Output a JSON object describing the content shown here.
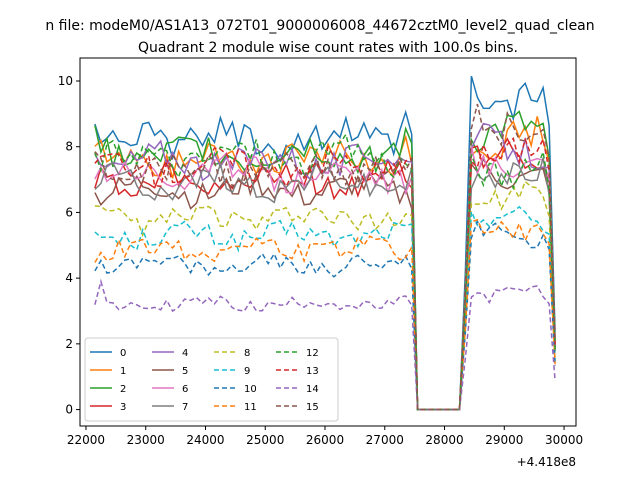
{
  "chart_data": {
    "type": "line",
    "suptitle": "n file: modeM0/AS1A13_072T01_9000006008_44672cztM0_level2_quad_clean",
    "title": "Quadrant 2 module wise count rates with 100.0s bins.",
    "xlabel": "",
    "ylabel": "",
    "x_offset_label": "+4.418e8",
    "xlim": [
      21900,
      30200
    ],
    "ylim": [
      -0.5,
      10.7
    ],
    "xticks": [
      22000,
      23000,
      24000,
      25000,
      26000,
      27000,
      28000,
      29000,
      30000
    ],
    "yticks": [
      0,
      2,
      4,
      6,
      8,
      10
    ],
    "grid": false,
    "legend_position": "lower-left",
    "legend_columns": 4,
    "x_start": 22150,
    "x_step": 100,
    "num_points": 78,
    "gap_start": 27550,
    "gap_end": 28250,
    "series": [
      {
        "name": "0",
        "color": "#1f77b4",
        "dash": "solid",
        "level": 8.25,
        "post": 9.4,
        "spikes": {
          "28450": 10.15,
          "28550": 9.5,
          "27350": 9.05
        }
      },
      {
        "name": "1",
        "color": "#ff7f0e",
        "dash": "solid",
        "level": 7.65,
        "post": 8.2,
        "spikes": {
          "27350": 8.3
        }
      },
      {
        "name": "2",
        "color": "#2ca02c",
        "dash": "solid",
        "level": 7.75,
        "post": 8.35,
        "spikes": {
          "22150": 8.65,
          "27350": 8.55
        }
      },
      {
        "name": "3",
        "color": "#d62728",
        "dash": "solid",
        "level": 7.0,
        "post": 7.6,
        "spikes": {}
      },
      {
        "name": "4",
        "color": "#9467bd",
        "dash": "solid",
        "level": 7.6,
        "post": 8.0,
        "spikes": {}
      },
      {
        "name": "5",
        "color": "#8c564b",
        "dash": "solid",
        "level": 6.7,
        "post": 7.2,
        "spikes": {}
      },
      {
        "name": "6",
        "color": "#e377c2",
        "dash": "solid",
        "level": 7.2,
        "post": 7.6,
        "spikes": {}
      },
      {
        "name": "7",
        "color": "#7f7f7f",
        "dash": "solid",
        "level": 6.9,
        "post": 7.1,
        "spikes": {}
      },
      {
        "name": "8",
        "color": "#bcbd22",
        "dash": "dashed",
        "level": 5.8,
        "post": 6.4,
        "spikes": {}
      },
      {
        "name": "9",
        "color": "#17becf",
        "dash": "dashed",
        "level": 5.3,
        "post": 5.8,
        "spikes": {}
      },
      {
        "name": "10",
        "color": "#1f77b4",
        "dash": "dashed",
        "level": 4.4,
        "post": 5.3,
        "spikes": {}
      },
      {
        "name": "11",
        "color": "#ff7f0e",
        "dash": "dashed",
        "level": 4.9,
        "post": 5.5,
        "spikes": {}
      },
      {
        "name": "12",
        "color": "#2ca02c",
        "dash": "dashed",
        "level": 7.7,
        "post": 7.3,
        "spikes": {}
      },
      {
        "name": "13",
        "color": "#d62728",
        "dash": "dashed",
        "level": 7.4,
        "post": 7.9,
        "spikes": {}
      },
      {
        "name": "14",
        "color": "#9467bd",
        "dash": "dashed",
        "level": 3.2,
        "post": 3.5,
        "spikes": {
          "22250": 3.9
        }
      },
      {
        "name": "15",
        "color": "#8c564b",
        "dash": "dashed",
        "level": 7.3,
        "post": 8.3,
        "spikes": {
          "28550": 9.3
        }
      }
    ]
  }
}
